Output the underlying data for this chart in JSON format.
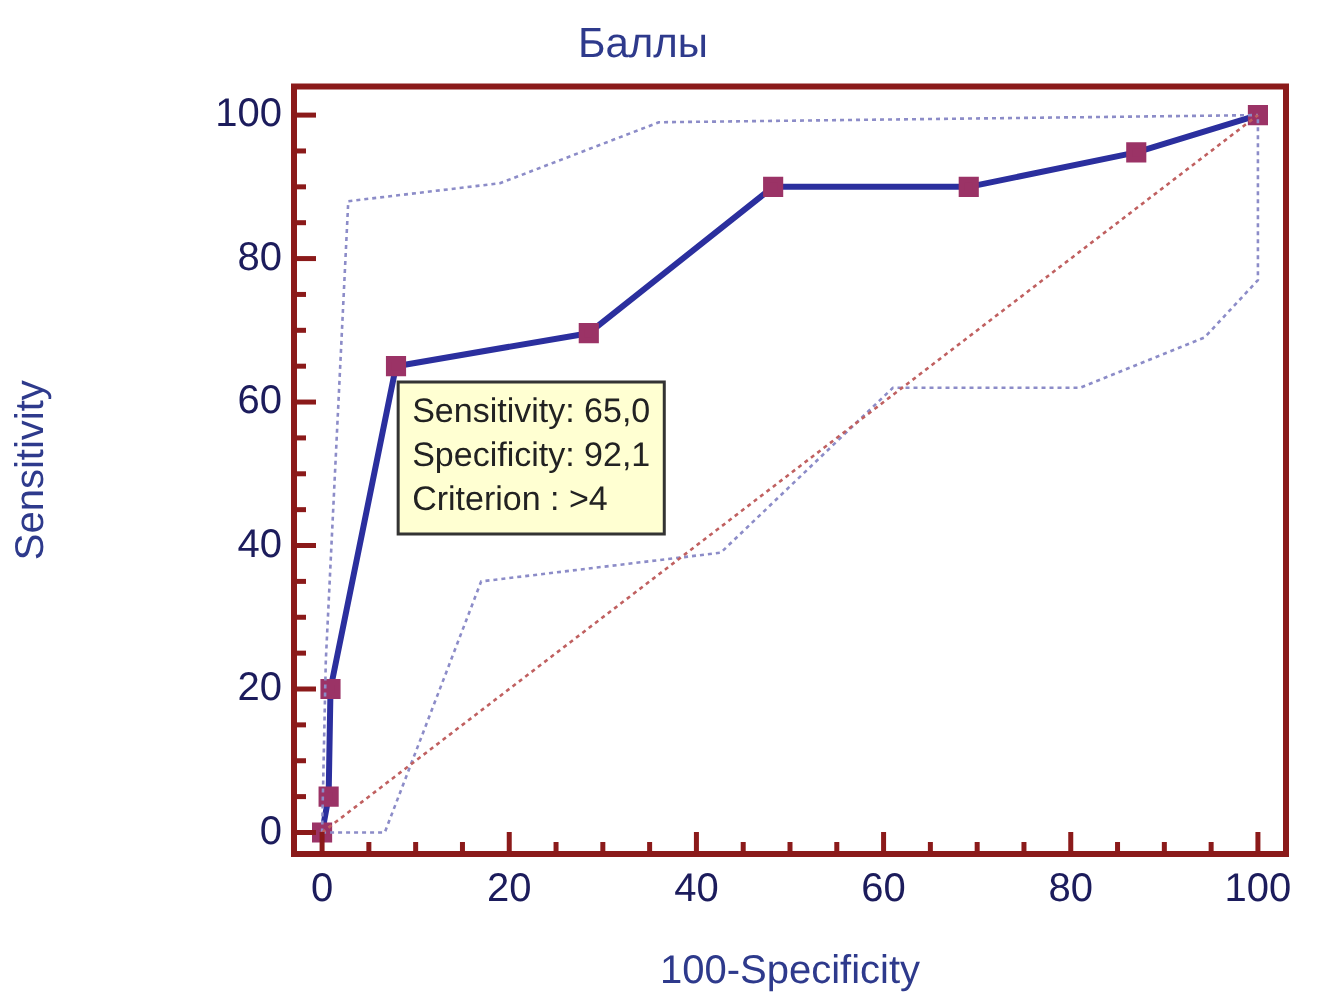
{
  "chart_data": {
    "type": "line",
    "title": "Баллы",
    "xlabel": "100-Specificity",
    "ylabel": "Sensitivity",
    "xlim": [
      -3,
      103
    ],
    "ylim": [
      -3,
      104
    ],
    "xticks": [
      0,
      {
        "value": 5,
        "label": null
      },
      {
        "value": 10,
        "label": null
      },
      {
        "value": 15,
        "label": null
      },
      20,
      {
        "value": 25,
        "label": null
      },
      {
        "value": 30,
        "label": null
      },
      {
        "value": 35,
        "label": null
      },
      40,
      {
        "value": 45,
        "label": null
      },
      {
        "value": 50,
        "label": null
      },
      {
        "value": 55,
        "label": null
      },
      60,
      {
        "value": 65,
        "label": null
      },
      {
        "value": 70,
        "label": null
      },
      {
        "value": 75,
        "label": null
      },
      80,
      {
        "value": 85,
        "label": null
      },
      {
        "value": 90,
        "label": null
      },
      {
        "value": 95,
        "label": null
      },
      100
    ],
    "yticks": [
      0,
      {
        "value": 5,
        "label": null
      },
      {
        "value": 10,
        "label": null
      },
      {
        "value": 15,
        "label": null
      },
      20,
      {
        "value": 25,
        "label": null
      },
      {
        "value": 30,
        "label": null
      },
      {
        "value": 35,
        "label": null
      },
      40,
      {
        "value": 45,
        "label": null
      },
      {
        "value": 50,
        "label": null
      },
      {
        "value": 55,
        "label": null
      },
      60,
      {
        "value": 65,
        "label": null
      },
      {
        "value": 70,
        "label": null
      },
      {
        "value": 75,
        "label": null
      },
      80,
      {
        "value": 85,
        "label": null
      },
      {
        "value": 90,
        "label": null
      },
      {
        "value": 95,
        "label": null
      },
      100
    ],
    "grid": false,
    "legend": false,
    "series": [
      {
        "color": "#c06060",
        "line_style": "dotted",
        "marker": "none",
        "x": [
          0,
          100
        ],
        "values": [
          0,
          100
        ]
      },
      {
        "color": "#8c8cc8",
        "line_style": "dotted",
        "marker": "none",
        "x": [
          0,
          0.4,
          2.8,
          19,
          36,
          100
        ],
        "values": [
          0,
          24,
          88,
          90.5,
          99,
          100
        ]
      },
      {
        "color": "#8c8cc8",
        "line_style": "dotted",
        "marker": "none",
        "x": [
          0,
          6.7,
          17,
          42.6,
          61,
          81,
          94.3,
          100,
          100
        ],
        "values": [
          0,
          0,
          35,
          39,
          62,
          62,
          69,
          77,
          100
        ]
      },
      {
        "color": "#2b2f9e",
        "line_style": "solid",
        "marker": "square",
        "colors": [
          "#9b3366",
          "#9b3366",
          "#9b3366",
          "#9b3366",
          "#9b3366",
          "#9b3366",
          "#9b3366",
          "#9b3366",
          "#9b3366"
        ],
        "x": [
          0,
          0.7,
          0.9,
          7.9,
          28.5,
          48.2,
          69.1,
          87,
          100
        ],
        "values": [
          0,
          5,
          20,
          65,
          69.6,
          90,
          90,
          94.8,
          100
        ]
      }
    ],
    "annotations": [
      "Sensitivity: 65,0",
      "Specificity: 92,1",
      "Criterion : >4"
    ]
  }
}
